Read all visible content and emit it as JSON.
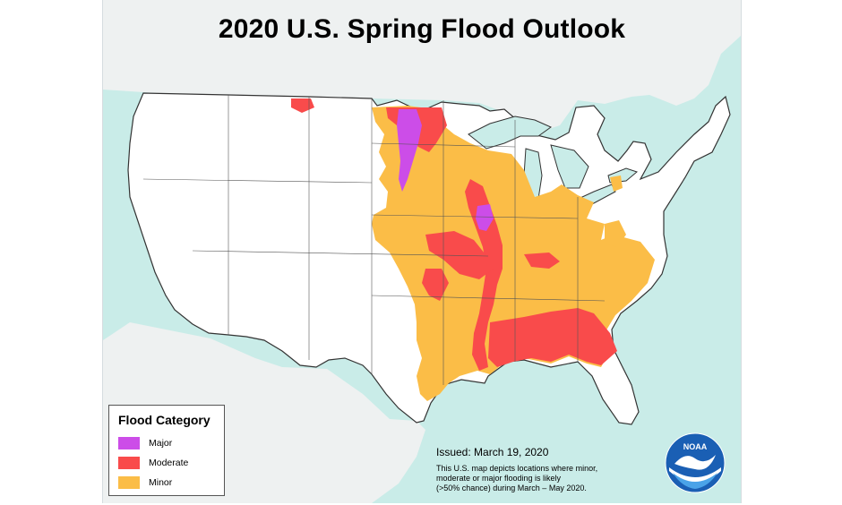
{
  "map": {
    "title": "2020 U.S. Spring Flood Outlook",
    "colors": {
      "ocean": "#c9ece8",
      "land_outside": "#eef1f1",
      "land_us": "#ffffff",
      "major": "#cc4de8",
      "moderate": "#f94b4b",
      "minor": "#fbbd47",
      "boundary": "#333333"
    }
  },
  "legend": {
    "title": "Flood Category",
    "items": [
      {
        "label": "Major",
        "color": "#cc4de8"
      },
      {
        "label": "Moderate",
        "color": "#f94b4b"
      },
      {
        "label": "Minor",
        "color": "#fbbd47"
      }
    ]
  },
  "info": {
    "issued": "Issued:  March 19, 2020",
    "note_lines": [
      "This U.S. map depicts locations where minor,",
      "moderate or major flooding is likely",
      "(>50% chance) during March – May 2020."
    ]
  },
  "logo": {
    "text": "NOAA"
  }
}
